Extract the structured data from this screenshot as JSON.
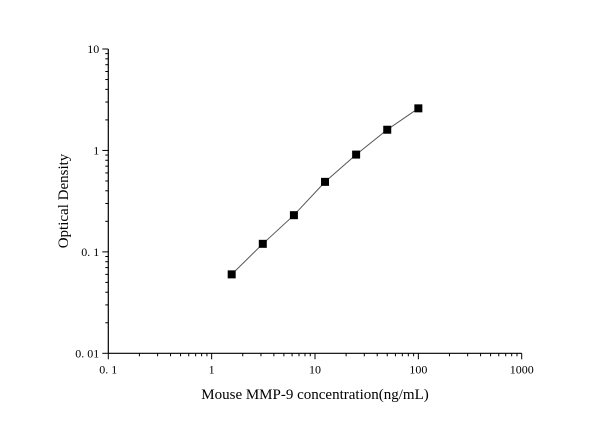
{
  "chart_data": {
    "type": "scatter",
    "title": "",
    "xlabel": "Mouse MMP-9 concentration(ng/mL)",
    "ylabel": "Optical Density",
    "xscale": "log",
    "yscale": "log",
    "xlim": [
      0.1,
      1000
    ],
    "ylim": [
      0.01,
      10
    ],
    "xticks": [
      0.1,
      1,
      10,
      100,
      1000
    ],
    "xtick_labels": [
      "0. 1",
      "1",
      "10",
      "100",
      "1000"
    ],
    "yticks": [
      0.01,
      0.1,
      1,
      10
    ],
    "ytick_labels": [
      "0. 01",
      "0. 1",
      "1",
      "10"
    ],
    "grid": false,
    "legend": "none",
    "marker": "square",
    "fit_line": true,
    "colors": {
      "marker": "#000000",
      "line": "#555555",
      "axis": "#000000"
    },
    "series": [
      {
        "x": [
          1.5625,
          3.125,
          6.25,
          12.5,
          25,
          50,
          100
        ],
        "y": [
          0.06,
          0.12,
          0.23,
          0.49,
          0.91,
          1.6,
          2.6
        ]
      }
    ]
  }
}
